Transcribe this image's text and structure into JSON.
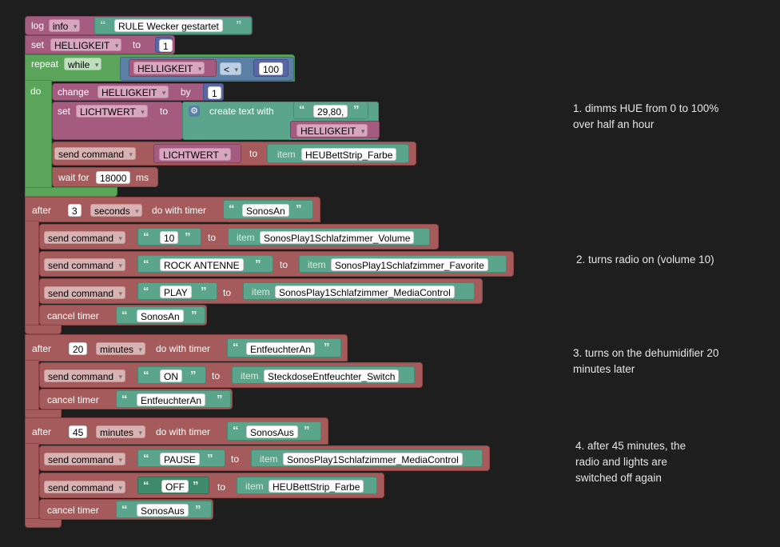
{
  "log": {
    "keyword": "log",
    "level": "info",
    "message": "RULE Wecker gestartet"
  },
  "set1": {
    "keyword": "set",
    "var": "HELLIGKEIT",
    "to": "to",
    "value": "1"
  },
  "repeat": {
    "keyword": "repeat",
    "mode": "while",
    "var": "HELLIGKEIT",
    "op": "<",
    "limit": "100",
    "do": "do"
  },
  "change": {
    "keyword": "change",
    "var": "HELLIGKEIT",
    "by": "by",
    "amount": "1"
  },
  "set2": {
    "keyword": "set",
    "var": "LICHTWERT",
    "to": "to",
    "create": "create text with",
    "part1": "29,80,",
    "part2": "HELLIGKEIT"
  },
  "send1": {
    "keyword": "send command",
    "value": "LICHTWERT",
    "to": "to",
    "item": "item",
    "target": "HEUBettStrip_Farbe"
  },
  "wait": {
    "prefix": "wait for",
    "ms": "18000",
    "suffix": "ms"
  },
  "timer1": {
    "after": "after",
    "amount": "3",
    "unit": "seconds",
    "do_with": "do with timer",
    "name": "SonosAn",
    "cmds": [
      {
        "label": "send command",
        "value": "10",
        "to": "to",
        "item": "item",
        "target": "SonosPlay1Schlafzimmer_Volume"
      },
      {
        "label": "send command",
        "value": "ROCK ANTENNE",
        "to": "to",
        "item": "item",
        "target": "SonosPlay1Schlafzimmer_Favorite"
      },
      {
        "label": "send command",
        "value": "PLAY",
        "to": "to",
        "item": "item",
        "target": "SonosPlay1Schlafzimmer_MediaControl"
      }
    ],
    "cancel": "cancel timer",
    "cancel_name": "SonosAn"
  },
  "timer2": {
    "after": "after",
    "amount": "20",
    "unit": "minutes",
    "do_with": "do with timer",
    "name": "EntfeuchterAn",
    "cmds": [
      {
        "label": "send command",
        "value": "ON",
        "to": "to",
        "item": "item",
        "target": "SteckdoseEntfeuchter_Switch"
      }
    ],
    "cancel": "cancel timer",
    "cancel_name": "EntfeuchterAn"
  },
  "timer3": {
    "after": "after",
    "amount": "45",
    "unit": "minutes",
    "do_with": "do with timer",
    "name": "SonosAus",
    "cmds": [
      {
        "label": "send command",
        "value": "PAUSE",
        "to": "to",
        "item": "item",
        "target": "SonosPlay1Schlafzimmer_MediaControl"
      },
      {
        "label": "send command",
        "value": "OFF",
        "to": "to",
        "item": "item",
        "target": "HEUBettStrip_Farbe"
      }
    ],
    "cancel": "cancel timer",
    "cancel_name": "SonosAus"
  },
  "notes": [
    "1. dimms HUE from 0 to 100%\nover half an hour",
    "2. turns radio on (volume 10)",
    "3. turns on the dehumidifier 20\nminutes later",
    "4. after 45 minutes, the\nradio and lights are\nswitched off again"
  ],
  "colors": {
    "log": "#a65c81",
    "loop": "#5ba55b",
    "logic": "#5b80a5",
    "command": "#a55b5b",
    "text": "#5ba58c",
    "background": "#1e1e1e"
  }
}
